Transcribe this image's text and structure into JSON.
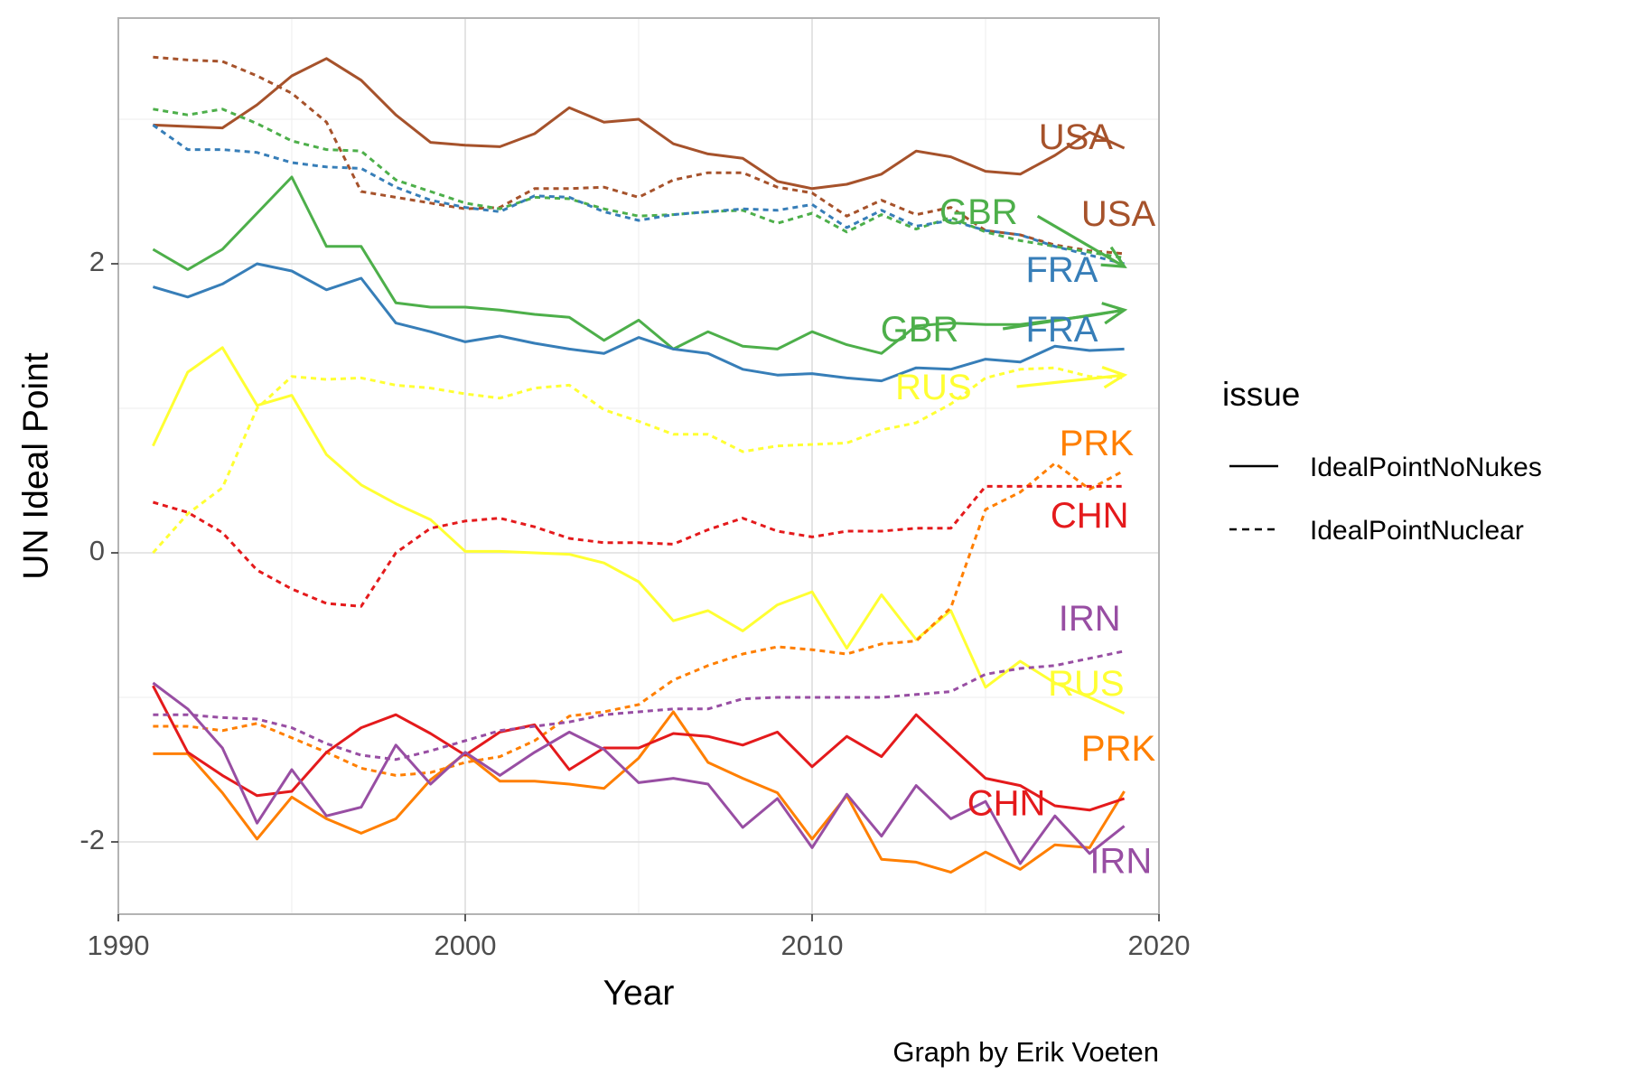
{
  "chart_data": {
    "type": "line",
    "xlabel": "Year",
    "ylabel": "UN Ideal Point",
    "xlim": [
      1990,
      2020
    ],
    "ylim": [
      -2.5,
      3.7
    ],
    "xticks": [
      1990,
      2000,
      2010,
      2020
    ],
    "yticks": [
      -2,
      0,
      2
    ],
    "grid": true,
    "caption": "Graph by Erik Voeten",
    "legend": {
      "title": "issue",
      "position": "right",
      "entries": [
        {
          "label": "IdealPointNoNukes",
          "dash": "solid"
        },
        {
          "label": "IdealPointNuclear",
          "dash": "dashed"
        }
      ]
    },
    "x": [
      1991,
      1992,
      1993,
      1994,
      1995,
      1996,
      1997,
      1998,
      1999,
      2000,
      2001,
      2002,
      2003,
      2004,
      2005,
      2006,
      2007,
      2008,
      2009,
      2010,
      2011,
      2012,
      2013,
      2014,
      2015,
      2016,
      2017,
      2018,
      2019
    ],
    "series": [
      {
        "country": "USA",
        "issue": "IdealPointNoNukes",
        "color": "#A6522B",
        "values": [
          2.96,
          2.95,
          2.94,
          3.1,
          3.3,
          3.42,
          3.27,
          3.03,
          2.84,
          2.82,
          2.81,
          2.9,
          3.08,
          2.98,
          3.0,
          2.83,
          2.76,
          2.73,
          2.57,
          2.52,
          2.55,
          2.62,
          2.78,
          2.74,
          2.64,
          2.62,
          2.75,
          2.91,
          2.8
        ]
      },
      {
        "country": "USA",
        "issue": "IdealPointNuclear",
        "color": "#A6522B",
        "values": [
          3.43,
          3.41,
          3.4,
          3.3,
          3.18,
          2.98,
          2.5,
          2.46,
          2.42,
          2.38,
          2.39,
          2.52,
          2.52,
          2.53,
          2.46,
          2.58,
          2.63,
          2.63,
          2.53,
          2.49,
          2.33,
          2.44,
          2.34,
          2.39,
          2.23,
          2.2,
          2.13,
          2.09,
          2.07
        ]
      },
      {
        "country": "GBR",
        "issue": "IdealPointNoNukes",
        "color": "#4DAF4A",
        "values": [
          2.1,
          1.96,
          2.1,
          2.35,
          2.6,
          2.12,
          2.12,
          1.73,
          1.7,
          1.7,
          1.68,
          1.65,
          1.63,
          1.47,
          1.61,
          1.41,
          1.53,
          1.43,
          1.41,
          1.53,
          1.44,
          1.38,
          1.57,
          1.59,
          1.58,
          1.58,
          1.61,
          1.64,
          1.68
        ]
      },
      {
        "country": "GBR",
        "issue": "IdealPointNuclear",
        "color": "#4DAF4A",
        "values": [
          3.07,
          3.03,
          3.07,
          2.97,
          2.85,
          2.79,
          2.78,
          2.58,
          2.5,
          2.42,
          2.38,
          2.46,
          2.45,
          2.38,
          2.33,
          2.34,
          2.36,
          2.37,
          2.28,
          2.35,
          2.22,
          2.34,
          2.24,
          2.32,
          2.22,
          2.16,
          2.12,
          2.08,
          2.04
        ]
      },
      {
        "country": "FRA",
        "issue": "IdealPointNoNukes",
        "color": "#377EB8",
        "values": [
          1.84,
          1.77,
          1.86,
          2.0,
          1.95,
          1.82,
          1.9,
          1.59,
          1.53,
          1.46,
          1.5,
          1.45,
          1.41,
          1.38,
          1.49,
          1.41,
          1.38,
          1.27,
          1.23,
          1.24,
          1.21,
          1.19,
          1.28,
          1.27,
          1.34,
          1.32,
          1.43,
          1.4,
          1.41
        ]
      },
      {
        "country": "FRA",
        "issue": "IdealPointNuclear",
        "color": "#377EB8",
        "values": [
          2.96,
          2.79,
          2.79,
          2.77,
          2.7,
          2.67,
          2.66,
          2.53,
          2.44,
          2.39,
          2.36,
          2.47,
          2.46,
          2.36,
          2.3,
          2.34,
          2.36,
          2.38,
          2.37,
          2.41,
          2.25,
          2.37,
          2.26,
          2.3,
          2.23,
          2.2,
          2.12,
          2.06,
          2.0
        ]
      },
      {
        "country": "RUS",
        "issue": "IdealPointNoNukes",
        "color": "#FFFF33",
        "values": [
          0.74,
          1.25,
          1.42,
          1.02,
          1.09,
          0.68,
          0.47,
          0.34,
          0.23,
          0.01,
          0.01,
          0.0,
          -0.01,
          -0.07,
          -0.2,
          -0.47,
          -0.4,
          -0.54,
          -0.36,
          -0.27,
          -0.66,
          -0.29,
          -0.6,
          -0.4,
          -0.93,
          -0.75,
          -0.9,
          -1.0,
          -1.11
        ]
      },
      {
        "country": "RUS",
        "issue": "IdealPointNuclear",
        "color": "#FFFF33",
        "values": [
          0.0,
          0.27,
          0.45,
          1.0,
          1.22,
          1.2,
          1.21,
          1.16,
          1.14,
          1.1,
          1.07,
          1.14,
          1.16,
          0.99,
          0.91,
          0.82,
          0.82,
          0.7,
          0.74,
          0.75,
          0.76,
          0.85,
          0.9,
          1.03,
          1.21,
          1.27,
          1.28,
          1.22,
          1.21
        ]
      },
      {
        "country": "PRK",
        "issue": "IdealPointNoNukes",
        "color": "#FF7F00",
        "values": [
          -1.39,
          -1.39,
          -1.66,
          -1.98,
          -1.69,
          -1.84,
          -1.94,
          -1.84,
          -1.57,
          -1.39,
          -1.58,
          -1.58,
          -1.6,
          -1.63,
          -1.42,
          -1.1,
          -1.45,
          -1.56,
          -1.66,
          -1.98,
          -1.68,
          -2.12,
          -2.14,
          -2.21,
          -2.07,
          -2.19,
          -2.02,
          -2.04,
          -1.65
        ]
      },
      {
        "country": "PRK",
        "issue": "IdealPointNuclear",
        "color": "#FF7F00",
        "values": [
          -1.2,
          -1.2,
          -1.23,
          -1.18,
          -1.28,
          -1.38,
          -1.49,
          -1.54,
          -1.52,
          -1.45,
          -1.41,
          -1.3,
          -1.13,
          -1.1,
          -1.05,
          -0.88,
          -0.78,
          -0.7,
          -0.65,
          -0.67,
          -0.7,
          -0.63,
          -0.61,
          -0.38,
          0.3,
          0.42,
          0.62,
          0.44,
          0.57
        ]
      },
      {
        "country": "CHN",
        "issue": "IdealPointNoNukes",
        "color": "#E41A1C",
        "values": [
          -0.92,
          -1.38,
          -1.54,
          -1.68,
          -1.65,
          -1.38,
          -1.21,
          -1.12,
          -1.25,
          -1.4,
          -1.24,
          -1.19,
          -1.5,
          -1.35,
          -1.35,
          -1.25,
          -1.27,
          -1.33,
          -1.24,
          -1.48,
          -1.27,
          -1.41,
          -1.12,
          -1.34,
          -1.56,
          -1.61,
          -1.75,
          -1.78,
          -1.7
        ]
      },
      {
        "country": "CHN",
        "issue": "IdealPointNuclear",
        "color": "#E41A1C",
        "values": [
          0.35,
          0.28,
          0.14,
          -0.12,
          -0.25,
          -0.35,
          -0.37,
          0.0,
          0.17,
          0.22,
          0.24,
          0.18,
          0.1,
          0.07,
          0.07,
          0.06,
          0.16,
          0.24,
          0.15,
          0.11,
          0.15,
          0.15,
          0.17,
          0.17,
          0.46,
          0.46,
          0.46,
          0.46,
          0.46
        ]
      },
      {
        "country": "IRN",
        "issue": "IdealPointNoNukes",
        "color": "#984EA3",
        "values": [
          -0.9,
          -1.08,
          -1.35,
          -1.87,
          -1.5,
          -1.82,
          -1.76,
          -1.33,
          -1.6,
          -1.38,
          -1.54,
          -1.38,
          -1.24,
          -1.36,
          -1.59,
          -1.56,
          -1.6,
          -1.9,
          -1.7,
          -2.04,
          -1.67,
          -1.96,
          -1.61,
          -1.84,
          -1.72,
          -2.15,
          -1.82,
          -2.08,
          -1.89
        ]
      },
      {
        "country": "IRN",
        "issue": "IdealPointNuclear",
        "color": "#984EA3",
        "values": [
          -1.12,
          -1.12,
          -1.14,
          -1.15,
          -1.21,
          -1.32,
          -1.4,
          -1.43,
          -1.37,
          -1.3,
          -1.23,
          -1.2,
          -1.17,
          -1.12,
          -1.1,
          -1.08,
          -1.08,
          -1.01,
          -1.0,
          -1.0,
          -1.0,
          -1.0,
          -0.98,
          -0.96,
          -0.84,
          -0.8,
          -0.78,
          -0.73,
          -0.68
        ]
      }
    ],
    "annotations": [
      {
        "text": "USA",
        "x": 2017.6,
        "y": 2.86,
        "color": "#A6522B",
        "anchor": "middle"
      },
      {
        "text": "USA",
        "x": 2019.9,
        "y": 2.33,
        "color": "#A6522B",
        "anchor": "end"
      },
      {
        "text": "GBR",
        "x": 2014.8,
        "y": 2.34,
        "color": "#4DAF4A",
        "anchor": "middle"
      },
      {
        "text": "GBR",
        "x": 2013.1,
        "y": 1.53,
        "color": "#4DAF4A",
        "anchor": "middle"
      },
      {
        "text": "FRA",
        "x": 2017.2,
        "y": 1.94,
        "color": "#377EB8",
        "anchor": "middle"
      },
      {
        "text": "FRA",
        "x": 2017.2,
        "y": 1.53,
        "color": "#377EB8",
        "anchor": "middle"
      },
      {
        "text": "RUS",
        "x": 2013.5,
        "y": 1.13,
        "color": "#FFFF33",
        "anchor": "middle"
      },
      {
        "text": "RUS",
        "x": 2017.9,
        "y": -0.92,
        "color": "#FFFF33",
        "anchor": "middle"
      },
      {
        "text": "PRK",
        "x": 2018.2,
        "y": 0.74,
        "color": "#FF7F00",
        "anchor": "middle"
      },
      {
        "text": "PRK",
        "x": 2019.9,
        "y": -1.37,
        "color": "#FF7F00",
        "anchor": "end"
      },
      {
        "text": "CHN",
        "x": 2018.0,
        "y": 0.24,
        "color": "#E41A1C",
        "anchor": "middle"
      },
      {
        "text": "CHN",
        "x": 2015.6,
        "y": -1.75,
        "color": "#E41A1C",
        "anchor": "middle"
      },
      {
        "text": "IRN",
        "x": 2018.0,
        "y": -0.47,
        "color": "#984EA3",
        "anchor": "middle"
      },
      {
        "text": "IRN",
        "x": 2018.9,
        "y": -2.15,
        "color": "#984EA3",
        "anchor": "middle"
      }
    ],
    "arrows": [
      {
        "color": "#4DAF4A",
        "from": [
          2016.5,
          2.33
        ],
        "to": [
          2019.0,
          1.98
        ]
      },
      {
        "color": "#4DAF4A",
        "from": [
          2015.5,
          1.55
        ],
        "to": [
          2019.0,
          1.68
        ]
      },
      {
        "color": "#FFFF33",
        "from": [
          2015.9,
          1.15
        ],
        "to": [
          2019.0,
          1.23
        ]
      }
    ]
  }
}
